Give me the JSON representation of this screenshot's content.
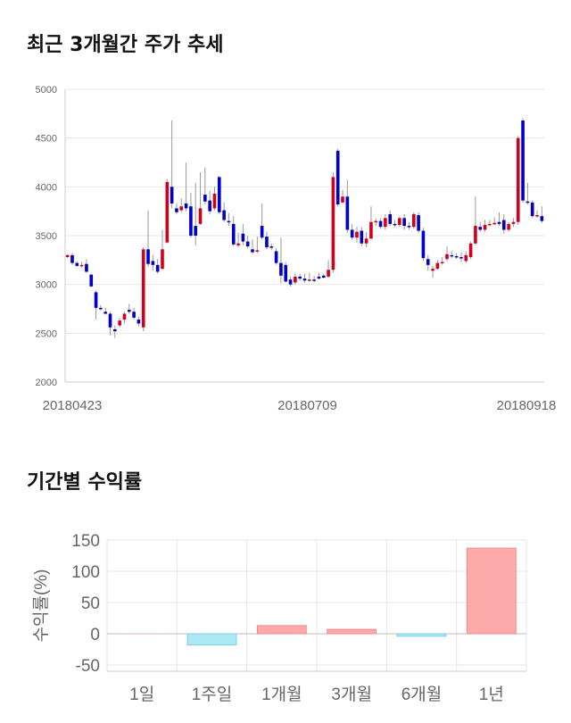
{
  "titles": {
    "price_chart": "최근 3개월간 주가 추세",
    "returns_chart": "기간별 수익률"
  },
  "chart_data": [
    {
      "type": "candlestick",
      "y_ticks": [
        "5000",
        "4500",
        "4000",
        "3500",
        "3000",
        "2500",
        "2000"
      ],
      "ylim": [
        2000,
        5000
      ],
      "x_labels": [
        "20180423",
        "20180709",
        "20180918"
      ],
      "up_color": "#d0021b",
      "down_color": "#0000c8",
      "grid": true,
      "candles": [
        [
          3280,
          3300,
          3310,
          3270
        ],
        [
          3300,
          3220,
          3320,
          3200
        ],
        [
          3220,
          3190,
          3240,
          3180
        ],
        [
          3190,
          3200,
          3230,
          3170
        ],
        [
          3210,
          3130,
          3260,
          3120
        ],
        [
          3100,
          2980,
          3110,
          2970
        ],
        [
          2920,
          2760,
          2940,
          2640
        ],
        [
          2760,
          2750,
          2790,
          2730
        ],
        [
          2720,
          2700,
          2760,
          2690
        ],
        [
          2700,
          2560,
          2720,
          2480
        ],
        [
          2540,
          2520,
          2580,
          2450
        ],
        [
          2580,
          2630,
          2660,
          2560
        ],
        [
          2640,
          2700,
          2720,
          2600
        ],
        [
          2740,
          2720,
          2800,
          2700
        ],
        [
          2720,
          2660,
          2760,
          2640
        ],
        [
          2640,
          2600,
          2670,
          2570
        ],
        [
          2560,
          3360,
          3380,
          2520
        ],
        [
          3360,
          3210,
          3760,
          3180
        ],
        [
          3240,
          3200,
          3300,
          3140
        ],
        [
          3200,
          3130,
          3260,
          3110
        ],
        [
          3160,
          3360,
          3560,
          3150
        ],
        [
          3430,
          4050,
          4080,
          3420
        ],
        [
          4000,
          3830,
          4680,
          3780
        ],
        [
          3780,
          3740,
          3830,
          3720
        ],
        [
          3760,
          3800,
          3880,
          3740
        ],
        [
          3830,
          3780,
          4250,
          3750
        ],
        [
          3800,
          3500,
          3940,
          3480
        ],
        [
          3600,
          3500,
          4040,
          3400
        ],
        [
          3620,
          3780,
          4150,
          3610
        ],
        [
          3920,
          3850,
          4200,
          3820
        ],
        [
          3860,
          3750,
          3960,
          3720
        ],
        [
          3780,
          3930,
          4000,
          3760
        ],
        [
          4100,
          3740,
          4110,
          3720
        ],
        [
          3760,
          3660,
          3840,
          3640
        ],
        [
          3650,
          3640,
          3730,
          3600
        ],
        [
          3620,
          3410,
          3700,
          3390
        ],
        [
          3400,
          3420,
          3530,
          3380
        ],
        [
          3520,
          3440,
          3620,
          3400
        ],
        [
          3440,
          3390,
          3500,
          3370
        ],
        [
          3360,
          3330,
          3460,
          3310
        ],
        [
          3340,
          3350,
          3490,
          3320
        ],
        [
          3600,
          3480,
          3830,
          3460
        ],
        [
          3490,
          3380,
          3540,
          3360
        ],
        [
          3390,
          3380,
          3420,
          3350
        ],
        [
          3340,
          3220,
          3370,
          3200
        ],
        [
          3220,
          3090,
          3480,
          3010
        ],
        [
          3200,
          3030,
          3230,
          3020
        ],
        [
          3050,
          3000,
          3080,
          2980
        ],
        [
          3020,
          3080,
          3120,
          3000
        ],
        [
          3080,
          3060,
          3110,
          3040
        ],
        [
          3060,
          3040,
          3110,
          3020
        ],
        [
          3040,
          3050,
          3120,
          3030
        ],
        [
          3050,
          3040,
          3090,
          3020
        ],
        [
          3080,
          3060,
          3120,
          3050
        ],
        [
          3090,
          3070,
          3110,
          3060
        ],
        [
          3080,
          3150,
          3250,
          3070
        ],
        [
          3150,
          4100,
          4150,
          3120
        ],
        [
          4370,
          3820,
          4390,
          3800
        ],
        [
          3840,
          3900,
          3970,
          3830
        ],
        [
          3900,
          3560,
          4070,
          3530
        ],
        [
          3560,
          3480,
          3620,
          3460
        ],
        [
          3480,
          3540,
          3590,
          3430
        ],
        [
          3550,
          3420,
          3590,
          3390
        ],
        [
          3420,
          3470,
          3540,
          3380
        ],
        [
          3470,
          3640,
          3800,
          3460
        ],
        [
          3640,
          3650,
          3680,
          3600
        ],
        [
          3650,
          3590,
          3680,
          3570
        ],
        [
          3590,
          3680,
          3720,
          3560
        ],
        [
          3720,
          3620,
          3760,
          3600
        ],
        [
          3620,
          3610,
          3660,
          3590
        ],
        [
          3610,
          3680,
          3700,
          3590
        ],
        [
          3680,
          3600,
          3720,
          3560
        ],
        [
          3600,
          3590,
          3640,
          3560
        ],
        [
          3590,
          3720,
          3740,
          3570
        ],
        [
          3710,
          3550,
          3740,
          3530
        ],
        [
          3550,
          3270,
          3580,
          3240
        ],
        [
          3260,
          3200,
          3300,
          3140
        ],
        [
          3140,
          3160,
          3190,
          3070
        ],
        [
          3160,
          3220,
          3250,
          3150
        ],
        [
          3220,
          3230,
          3280,
          3200
        ],
        [
          3260,
          3310,
          3390,
          3240
        ],
        [
          3300,
          3290,
          3340,
          3270
        ],
        [
          3290,
          3280,
          3320,
          3260
        ],
        [
          3280,
          3270,
          3330,
          3230
        ],
        [
          3240,
          3300,
          3340,
          3220
        ],
        [
          3280,
          3420,
          3440,
          3260
        ],
        [
          3420,
          3600,
          3900,
          3400
        ],
        [
          3590,
          3560,
          3640,
          3540
        ],
        [
          3560,
          3610,
          3660,
          3540
        ],
        [
          3610,
          3620,
          3660,
          3600
        ],
        [
          3620,
          3630,
          3690,
          3610
        ],
        [
          3640,
          3620,
          3740,
          3600
        ],
        [
          3660,
          3560,
          3720,
          3520
        ],
        [
          3560,
          3620,
          3640,
          3540
        ],
        [
          3620,
          3640,
          3680,
          3590
        ],
        [
          3640,
          4500,
          4520,
          3610
        ],
        [
          4680,
          3860,
          4700,
          3840
        ],
        [
          3850,
          3840,
          4040,
          3820
        ],
        [
          3840,
          3700,
          3860,
          3680
        ],
        [
          3700,
          3710,
          3760,
          3680
        ],
        [
          3700,
          3650,
          3800,
          3630
        ]
      ]
    },
    {
      "type": "bar",
      "categories": [
        "1일",
        "1주일",
        "1개월",
        "3개월",
        "6개월",
        "1년"
      ],
      "values": [
        0,
        -18,
        13,
        7,
        -4,
        137
      ],
      "ylabel": "수익률(%)",
      "ylim": [
        -60,
        150
      ],
      "y_ticks": [
        150,
        100,
        50,
        0,
        -50
      ],
      "positive_color": "#ffaaaa",
      "negative_color": "#aae8f5",
      "grid": true
    }
  ]
}
